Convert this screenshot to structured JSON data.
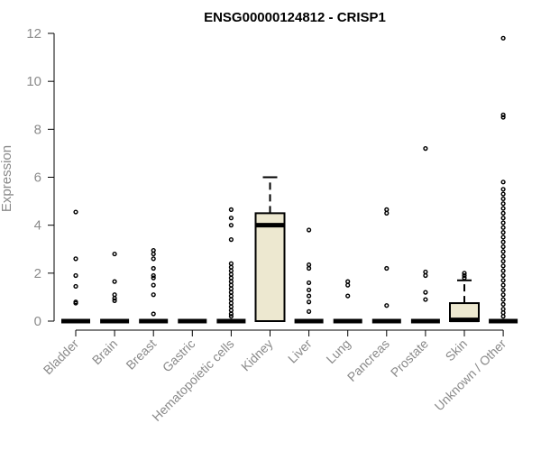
{
  "chart_data": {
    "type": "box",
    "title": "ENSG00000124812 - CRISP1",
    "xlabel": "",
    "ylabel": "Expression",
    "ylim": [
      0,
      12
    ],
    "yticks": [
      0,
      2,
      4,
      6,
      8,
      10,
      12
    ],
    "box_fill": "#ede8d0",
    "categories": [
      "Bladder",
      "Brain",
      "Breast",
      "Gastric",
      "Hematopoietic cells",
      "Kidney",
      "Liver",
      "Lung",
      "Pancreas",
      "Prostate",
      "Skin",
      "Unknown / Other"
    ],
    "boxes": [
      {
        "q1": 0,
        "median": 0,
        "q3": 0,
        "whisker_low": 0,
        "whisker_high": 0,
        "outliers": [
          0.75,
          0.8,
          1.45,
          1.9,
          2.6,
          4.55
        ]
      },
      {
        "q1": 0,
        "median": 0,
        "q3": 0,
        "whisker_low": 0,
        "whisker_high": 0,
        "outliers": [
          0.85,
          0.95,
          1.1,
          1.65,
          2.8
        ]
      },
      {
        "q1": 0,
        "median": 0,
        "q3": 0,
        "whisker_low": 0,
        "whisker_high": 0,
        "outliers": [
          0.3,
          1.1,
          1.5,
          1.8,
          1.9,
          2.2,
          2.6,
          2.8,
          2.95
        ]
      },
      {
        "q1": 0,
        "median": 0,
        "q3": 0,
        "whisker_low": 0,
        "whisker_high": 0,
        "outliers": []
      },
      {
        "q1": 0,
        "median": 0,
        "q3": 0,
        "whisker_low": 0,
        "whisker_high": 0,
        "outliers": [
          0.2,
          0.3,
          0.45,
          0.6,
          0.75,
          0.9,
          1.05,
          1.2,
          1.35,
          1.5,
          1.65,
          1.8,
          1.95,
          2.1,
          2.25,
          2.4,
          3.4,
          4.0,
          4.3,
          4.65
        ]
      },
      {
        "q1": 0,
        "median": 4.0,
        "q3": 4.5,
        "whisker_low": 0,
        "whisker_high": 6.0,
        "outliers": []
      },
      {
        "q1": 0,
        "median": 0,
        "q3": 0,
        "whisker_low": 0,
        "whisker_high": 0,
        "outliers": [
          0.4,
          0.8,
          1.05,
          1.3,
          1.6,
          2.2,
          2.35,
          3.8
        ]
      },
      {
        "q1": 0,
        "median": 0,
        "q3": 0,
        "whisker_low": 0,
        "whisker_high": 0,
        "outliers": [
          1.05,
          1.5,
          1.65
        ]
      },
      {
        "q1": 0,
        "median": 0,
        "q3": 0,
        "whisker_low": 0,
        "whisker_high": 0,
        "outliers": [
          0.65,
          2.2,
          4.5,
          4.65
        ]
      },
      {
        "q1": 0,
        "median": 0,
        "q3": 0,
        "whisker_low": 0,
        "whisker_high": 0,
        "outliers": [
          0.9,
          1.2,
          1.9,
          2.05,
          7.2
        ]
      },
      {
        "q1": 0,
        "median": 0.05,
        "q3": 0.75,
        "whisker_low": 0,
        "whisker_high": 1.7,
        "outliers": [
          1.8,
          1.9,
          2.0
        ]
      },
      {
        "q1": 0,
        "median": 0,
        "q3": 0,
        "whisker_low": 0,
        "whisker_high": 0,
        "outliers": [
          0.2,
          0.35,
          0.5,
          0.7,
          0.9,
          1.1,
          1.3,
          1.5,
          1.7,
          1.9,
          2.1,
          2.3,
          2.5,
          2.7,
          2.9,
          3.1,
          3.3,
          3.5,
          3.7,
          3.9,
          4.1,
          4.3,
          4.5,
          4.7,
          4.9,
          5.1,
          5.3,
          5.5,
          5.8,
          8.5,
          8.6,
          11.8
        ]
      }
    ]
  }
}
